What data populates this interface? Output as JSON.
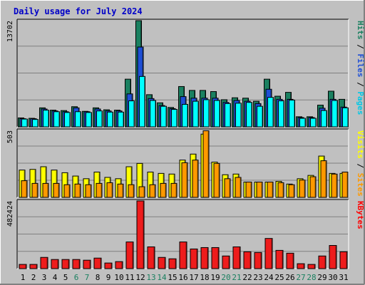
{
  "chart_data": {
    "type": "bar",
    "title": "Daily usage for July 2024",
    "categories": [
      "1",
      "2",
      "3",
      "4",
      "5",
      "6",
      "7",
      "8",
      "9",
      "10",
      "11",
      "12",
      "13",
      "14",
      "15",
      "16",
      "17",
      "18",
      "19",
      "20",
      "21",
      "22",
      "23",
      "24",
      "25",
      "26",
      "27",
      "28",
      "29",
      "30",
      "31"
    ],
    "weekend_days": [
      "6",
      "7",
      "13",
      "14",
      "20",
      "21",
      "27",
      "28"
    ],
    "panels": [
      {
        "id": "top",
        "ymax_label": "13702",
        "ylim": [
          0,
          13702
        ],
        "legend": [
          {
            "text": "Pages",
            "color": "#00c8e6"
          },
          {
            "text": " / ",
            "color": "#000000"
          },
          {
            "text": "Files",
            "color": "#1e4fd6"
          },
          {
            "text": " / ",
            "color": "#000000"
          },
          {
            "text": "Hits",
            "color": "#1a8060"
          }
        ],
        "series": [
          {
            "name": "Hits",
            "color": "#1a8060",
            "values": [
              1150,
              1100,
              2450,
              2150,
              2100,
              2600,
              2000,
              2450,
              2200,
              2150,
              6150,
              13702,
              4150,
              3100,
              2500,
              5200,
              4700,
              4700,
              4550,
              3500,
              3750,
              3700,
              3300,
              6150,
              3950,
              4450,
              1300,
              1300,
              2800,
              4600,
              3550
            ]
          },
          {
            "name": "Files",
            "color": "#1e4fd6",
            "values": [
              1050,
              1050,
              2300,
              2050,
              1950,
              2450,
              1950,
              2300,
              2050,
              2050,
              4250,
              10300,
              3650,
              2750,
              2350,
              3900,
              3700,
              3700,
              3700,
              3150,
              3400,
              3300,
              3000,
              4850,
              3550,
              3550,
              1200,
              1200,
              2400,
              3550,
              2550
            ]
          },
          {
            "name": "Pages",
            "color": "#00ffff",
            "values": [
              1000,
              950,
              2150,
              1950,
              1850,
              1950,
              1850,
              2050,
              1900,
              1900,
              3350,
              6500,
              3400,
              2650,
              2250,
              2900,
              3300,
              3500,
              3400,
              3000,
              3050,
              3150,
              2650,
              3800,
              3350,
              3450,
              1100,
              1100,
              2100,
              3400,
              2450
            ]
          }
        ],
        "group_offsets": [
          -6.5,
          -4,
          -1.5
        ],
        "bar_width": 8
      },
      {
        "id": "mid",
        "ymax_label": "503",
        "ylim": [
          0,
          503
        ],
        "legend": [
          {
            "text": "Sites",
            "color": "#ff9900"
          },
          {
            "text": " / ",
            "color": "#000000"
          },
          {
            "text": "Visits",
            "color": "#ffff00"
          }
        ],
        "series": [
          {
            "name": "Visits",
            "color": "#ffff00",
            "values": [
              205,
              210,
              230,
              205,
              185,
              160,
              140,
              190,
              150,
              140,
              230,
              255,
              190,
              180,
              175,
              280,
              325,
              475,
              265,
              170,
              175,
              115,
              115,
              115,
              120,
              100,
              140,
              165,
              310,
              180,
              180
            ]
          },
          {
            "name": "Sites",
            "color": "#ff9900",
            "values": [
              125,
              105,
              105,
              105,
              95,
              100,
              95,
              105,
              110,
              100,
              95,
              80,
              95,
              105,
              105,
              260,
              280,
              500,
              255,
              140,
              150,
              115,
              115,
              115,
              110,
              95,
              130,
              155,
              275,
              175,
              190
            ]
          }
        ],
        "group_offsets": [
          -5,
          -2
        ],
        "bar_width": 8
      },
      {
        "id": "bot",
        "ymax_label": "482424",
        "ylim": [
          0,
          482424
        ],
        "legend": [
          {
            "text": "KBytes",
            "color": "#ff0000"
          }
        ],
        "series": [
          {
            "name": "KBytes",
            "color": "#ee1c1c",
            "values": [
              30000,
              30000,
              80000,
              65000,
              65000,
              65000,
              60000,
              75000,
              40000,
              50000,
              190000,
              482424,
              155000,
              80000,
              70000,
              190000,
              140000,
              150000,
              150000,
              90000,
              155000,
              120000,
              115000,
              215000,
              130000,
              110000,
              35000,
              30000,
              90000,
              165000,
              120000
            ]
          }
        ],
        "group_offsets": [
          -5
        ],
        "bar_width": 10
      }
    ]
  }
}
